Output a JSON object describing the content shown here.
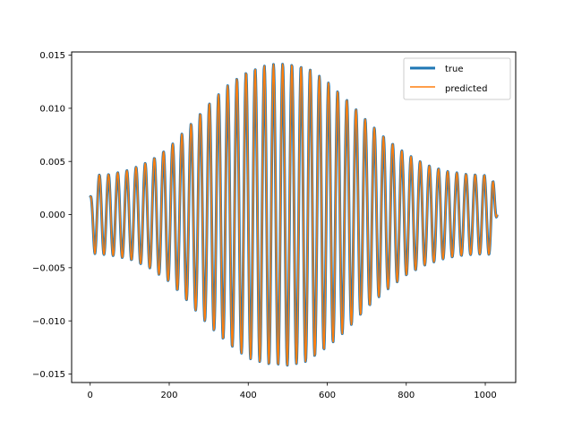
{
  "chart_data": {
    "type": "line",
    "title": "",
    "xlabel": "",
    "ylabel": "",
    "xlim": [
      -47,
      1077
    ],
    "ylim": [
      -0.0158,
      0.0153
    ],
    "x_ticks": [
      0,
      200,
      400,
      600,
      800,
      1000
    ],
    "x_tick_labels": [
      "0",
      "200",
      "400",
      "600",
      "800",
      "1000"
    ],
    "y_ticks": [
      -0.015,
      -0.01,
      -0.005,
      0.0,
      0.005,
      0.01,
      0.015
    ],
    "y_tick_labels": [
      "−0.015",
      "−0.010",
      "−0.005",
      "0.000",
      "0.005",
      "0.010",
      "0.015"
    ],
    "grid": false,
    "legend": {
      "location": "upper right",
      "entries": [
        {
          "label": "true",
          "color": "#1f77b4"
        },
        {
          "label": "predicted",
          "color": "#ff7f0e"
        }
      ]
    },
    "signal": {
      "x_start": 0,
      "x_end": 1030,
      "num_points": 1031,
      "period": 23.2,
      "start_value": 0.0016,
      "end_value": 0.0,
      "envelope": [
        {
          "x": 0,
          "amplitude": 0.0016
        },
        {
          "x": 12,
          "amplitude": 0.0037
        },
        {
          "x": 50,
          "amplitude": 0.0038
        },
        {
          "x": 100,
          "amplitude": 0.0042
        },
        {
          "x": 150,
          "amplitude": 0.005
        },
        {
          "x": 200,
          "amplitude": 0.0063
        },
        {
          "x": 250,
          "amplitude": 0.0083
        },
        {
          "x": 300,
          "amplitude": 0.0104
        },
        {
          "x": 350,
          "amplitude": 0.0122
        },
        {
          "x": 400,
          "amplitude": 0.0135
        },
        {
          "x": 450,
          "amplitude": 0.0141
        },
        {
          "x": 500,
          "amplitude": 0.0142
        },
        {
          "x": 550,
          "amplitude": 0.0138
        },
        {
          "x": 600,
          "amplitude": 0.0125
        },
        {
          "x": 650,
          "amplitude": 0.0108
        },
        {
          "x": 700,
          "amplitude": 0.0088
        },
        {
          "x": 750,
          "amplitude": 0.0071
        },
        {
          "x": 800,
          "amplitude": 0.0057
        },
        {
          "x": 850,
          "amplitude": 0.0047
        },
        {
          "x": 900,
          "amplitude": 0.0041
        },
        {
          "x": 950,
          "amplitude": 0.0038
        },
        {
          "x": 1000,
          "amplitude": 0.0037
        },
        {
          "x": 1018,
          "amplitude": 0.0038
        },
        {
          "x": 1030,
          "amplitude": 0.0
        }
      ]
    },
    "series": [
      {
        "name": "true",
        "color": "#1f77b4"
      },
      {
        "name": "predicted",
        "color": "#ff7f0e"
      }
    ]
  }
}
